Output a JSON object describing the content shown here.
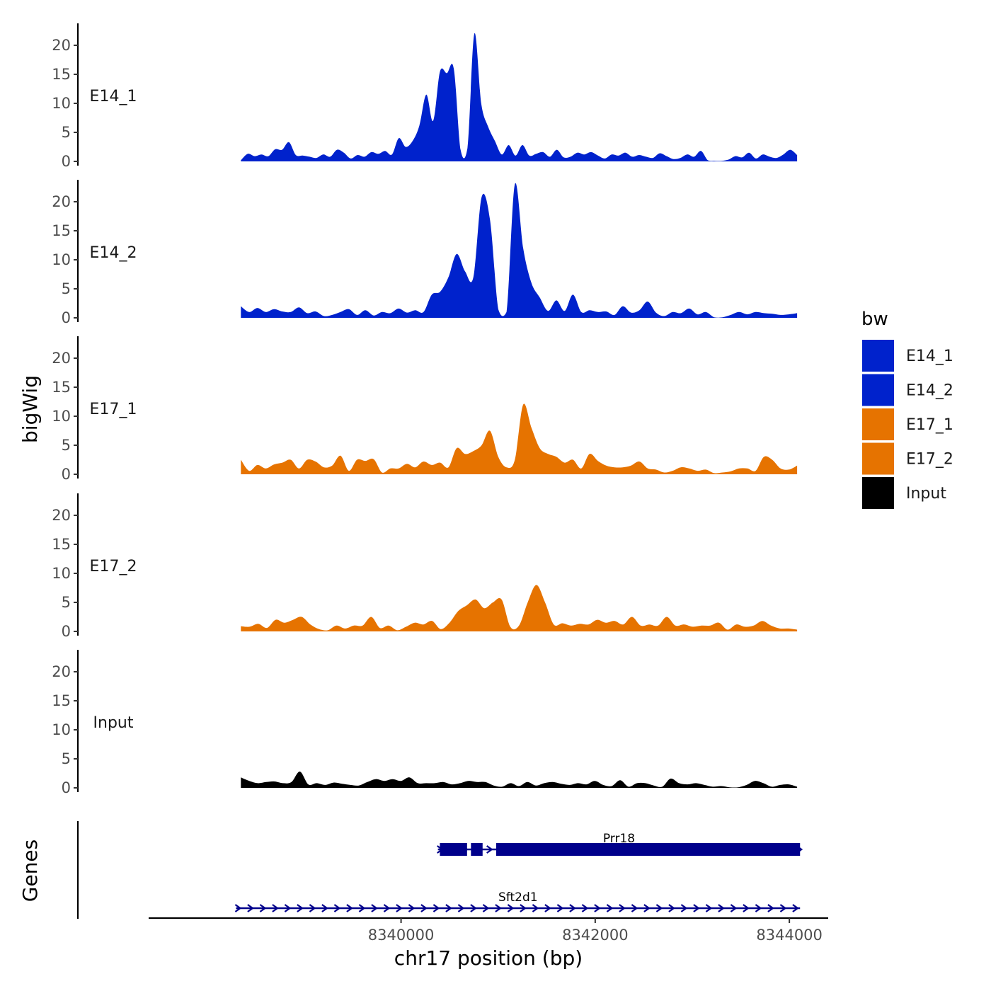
{
  "chart_data": {
    "type": "area",
    "chromosome": "chr17",
    "xlabel": "chr17 position (bp)",
    "ylabel_tracks": "bigWig",
    "ylabel_genes": "Genes",
    "xlim": [
      8337400,
      8344400
    ],
    "x_ticks": [
      8340000,
      8342000,
      8344000
    ],
    "x_tick_labels": [
      "8340000",
      "8342000",
      "8344000"
    ],
    "ylim": [
      0,
      24
    ],
    "y_ticks": [
      0,
      5,
      10,
      15,
      20
    ],
    "y_tick_labels": [
      "0",
      "5",
      "10",
      "15",
      "20"
    ],
    "x_start": 8338350,
    "x_end": 8344080,
    "legend": {
      "title": "bw",
      "placement": "right",
      "entries": [
        {
          "label": "E14_1",
          "color": "#0022cc"
        },
        {
          "label": "E14_2",
          "color": "#0022cc"
        },
        {
          "label": "E17_1",
          "color": "#e67300"
        },
        {
          "label": "E17_2",
          "color": "#e67300"
        },
        {
          "label": "Input",
          "color": "#000000"
        }
      ]
    },
    "series": [
      {
        "name": "E14_1",
        "color": "#0022cc",
        "values": [
          0.2,
          1.3,
          0.9,
          1.2,
          0.9,
          2.1,
          2.0,
          3.3,
          1.1,
          1.0,
          0.8,
          0.6,
          1.2,
          0.8,
          2.0,
          1.5,
          0.5,
          1.1,
          0.8,
          1.6,
          1.3,
          1.8,
          1.2,
          4.0,
          2.5,
          3.5,
          6.2,
          11.5,
          7.0,
          15.5,
          15.2,
          16.0,
          2.0,
          2.3,
          22.0,
          10.0,
          6.0,
          3.5,
          1.2,
          2.8,
          1.0,
          2.8,
          1.0,
          1.3,
          1.6,
          0.8,
          2.0,
          0.7,
          0.8,
          1.5,
          1.2,
          1.6,
          1.0,
          0.5,
          1.2,
          1.0,
          1.5,
          0.8,
          1.1,
          0.8,
          0.6,
          1.4,
          0.9,
          0.4,
          0.6,
          1.2,
          0.8,
          1.8,
          0.2,
          0.1,
          0.1,
          0.3,
          0.9,
          0.7,
          1.5,
          0.5,
          1.2,
          0.8,
          0.6,
          1.2,
          2.0,
          1.1
        ]
      },
      {
        "name": "E14_2",
        "color": "#0022cc",
        "values": [
          2.0,
          1.0,
          1.7,
          1.0,
          1.5,
          1.1,
          1.0,
          1.8,
          0.8,
          1.1,
          0.3,
          0.5,
          1.0,
          1.5,
          0.5,
          1.3,
          0.4,
          1.0,
          0.8,
          1.6,
          0.9,
          1.3,
          1.0,
          4.0,
          4.5,
          7.0,
          11.0,
          8.0,
          7.0,
          20.8,
          17.0,
          1.5,
          1.0,
          23.0,
          12.0,
          6.0,
          3.5,
          1.2,
          3.0,
          1.2,
          4.0,
          1.0,
          1.3,
          1.0,
          1.1,
          0.5,
          2.0,
          0.9,
          1.3,
          2.8,
          0.9,
          0.3,
          1.0,
          0.8,
          1.6,
          0.6,
          1.0,
          0.1,
          0.1,
          0.5,
          1.0,
          0.6,
          1.0,
          0.8,
          0.7,
          0.5,
          0.6,
          0.8
        ]
      },
      {
        "name": "E17_1",
        "color": "#e67300",
        "values": [
          2.5,
          0.6,
          1.6,
          1.0,
          1.7,
          2.0,
          2.5,
          1.0,
          2.5,
          2.2,
          1.2,
          1.5,
          3.2,
          0.6,
          2.5,
          2.3,
          2.6,
          0.3,
          1.0,
          1.0,
          1.8,
          1.2,
          2.2,
          1.6,
          2.0,
          1.2,
          4.5,
          3.5,
          4.0,
          5.0,
          7.5,
          3.0,
          1.2,
          2.5,
          12.0,
          8.0,
          4.5,
          3.5,
          3.0,
          2.0,
          2.5,
          1.0,
          3.5,
          2.3,
          1.5,
          1.2,
          1.2,
          1.5,
          2.2,
          1.0,
          0.8,
          0.3,
          0.6,
          1.2,
          1.0,
          0.6,
          0.8,
          0.2,
          0.3,
          0.5,
          1.0,
          1.0,
          0.6,
          3.0,
          2.5,
          1.0,
          0.8,
          1.5
        ]
      },
      {
        "name": "E17_2",
        "color": "#e67300",
        "values": [
          0.9,
          0.8,
          1.3,
          0.6,
          2.0,
          1.5,
          2.0,
          2.5,
          1.2,
          0.4,
          0.2,
          1.0,
          0.5,
          1.0,
          1.0,
          2.5,
          0.6,
          1.0,
          0.2,
          0.8,
          1.5,
          1.2,
          1.8,
          0.4,
          1.5,
          3.5,
          4.5,
          5.5,
          4.0,
          5.0,
          5.5,
          0.8,
          1.0,
          5.0,
          8.0,
          5.0,
          1.2,
          1.4,
          1.0,
          1.3,
          1.2,
          2.0,
          1.5,
          1.8,
          1.2,
          2.5,
          1.0,
          1.2,
          1.0,
          2.5,
          1.0,
          1.2,
          0.8,
          1.0,
          1.0,
          1.5,
          0.3,
          1.2,
          0.8,
          1.0,
          1.8,
          1.0,
          0.5,
          0.5,
          0.3
        ]
      },
      {
        "name": "Input",
        "color": "#000000",
        "values": [
          1.8,
          1.2,
          0.8,
          1.0,
          1.1,
          0.8,
          1.0,
          2.8,
          0.6,
          0.8,
          0.5,
          0.9,
          0.7,
          0.5,
          0.4,
          1.0,
          1.5,
          1.2,
          1.5,
          1.2,
          1.8,
          0.8,
          0.8,
          0.8,
          1.0,
          0.6,
          0.8,
          1.2,
          1.0,
          1.0,
          0.4,
          0.2,
          0.8,
          0.3,
          1.0,
          0.4,
          0.8,
          1.0,
          0.7,
          0.5,
          0.8,
          0.6,
          1.2,
          0.5,
          0.3,
          1.3,
          0.2,
          0.8,
          0.8,
          0.4,
          0.2,
          1.6,
          0.8,
          0.6,
          0.8,
          0.5,
          0.2,
          0.3,
          0.1,
          0.1,
          0.5,
          1.2,
          0.8,
          0.2,
          0.5,
          0.6,
          0.2
        ]
      }
    ],
    "genes": [
      {
        "name": "Prr18",
        "start": 8340380,
        "end": 8344110,
        "strand": "+",
        "exons": [
          [
            8340400,
            8340680
          ],
          [
            8340720,
            8340840
          ],
          [
            8340980,
            8344110
          ]
        ]
      },
      {
        "name": "Sft2d1",
        "start": 8338300,
        "end": 8344110,
        "strand": "+",
        "exons": []
      }
    ]
  }
}
